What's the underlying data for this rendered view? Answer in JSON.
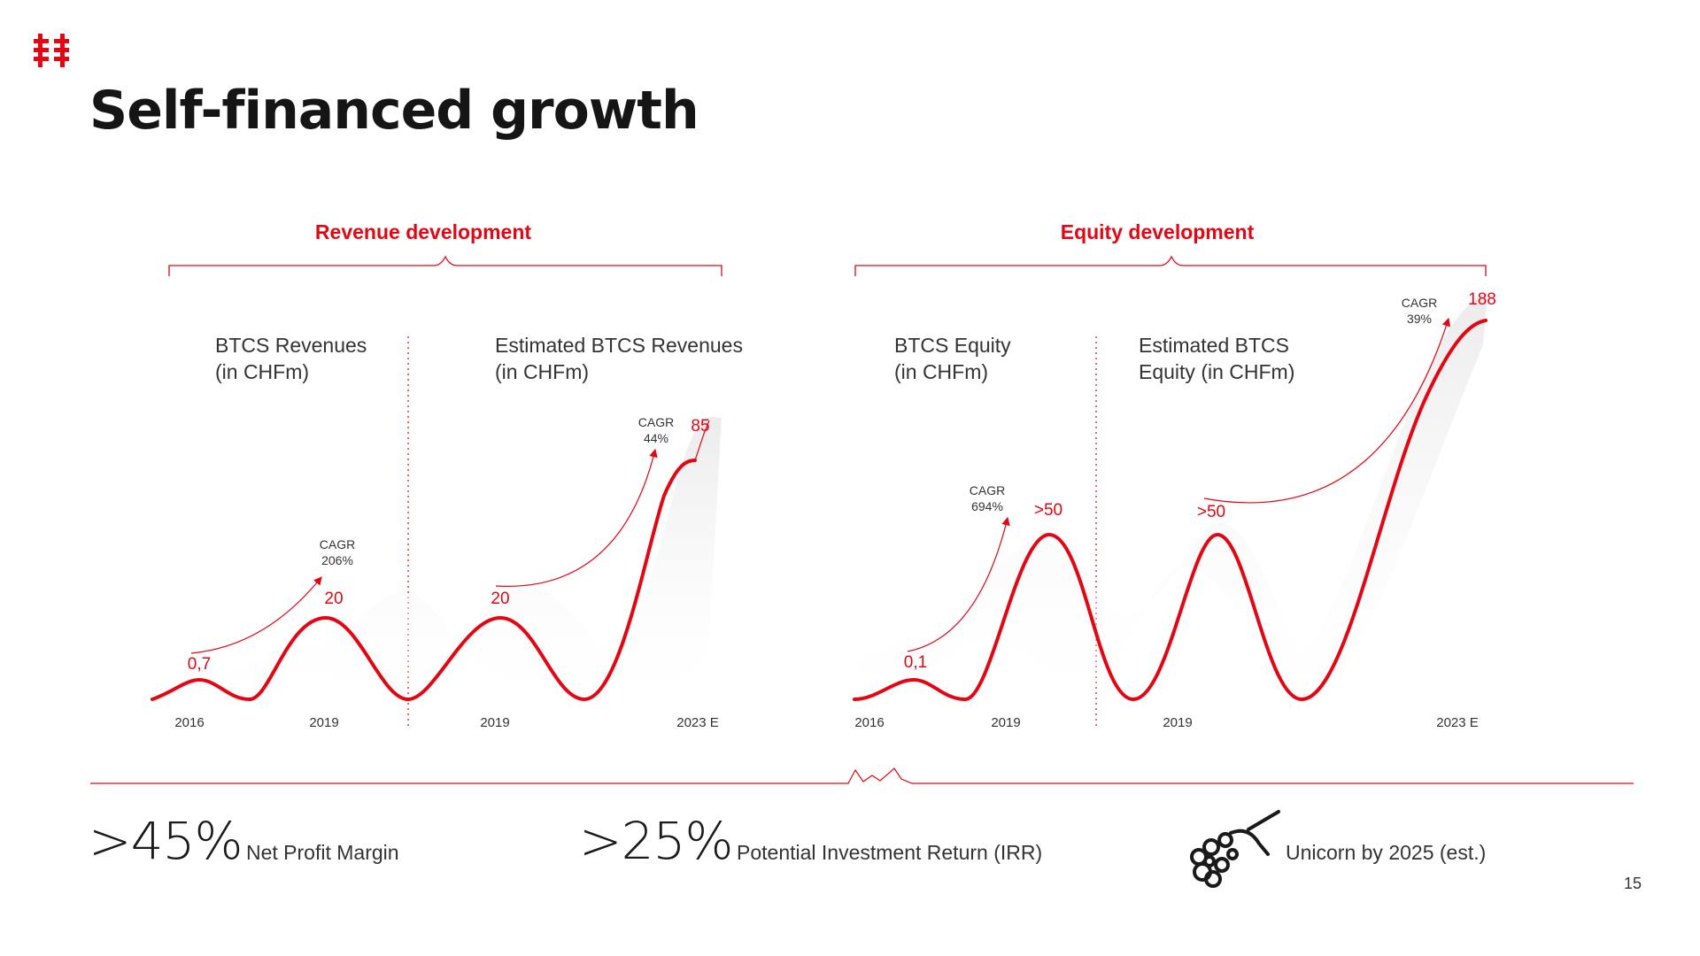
{
  "slide": {
    "title": "Self-financed growth",
    "page_number": "15",
    "accent_color": "#e30613",
    "logo_icon": "btcs-logo-icon"
  },
  "sections": {
    "revenue_title": "Revenue development",
    "equity_title": "Equity development"
  },
  "chart_data": [
    {
      "type": "line",
      "panel_label": [
        "BTCS Revenues",
        "(in CHFm)"
      ],
      "x": [
        "2016",
        "2019"
      ],
      "values": [
        0.7,
        20
      ],
      "value_labels": [
        "0,7",
        "20"
      ],
      "cagr": [
        "CAGR",
        "206%"
      ]
    },
    {
      "type": "line",
      "panel_label": [
        "Estimated BTCS Revenues",
        "(in CHFm)"
      ],
      "x": [
        "2019",
        "2023 E"
      ],
      "values": [
        20,
        85
      ],
      "value_labels": [
        "20",
        "85"
      ],
      "cagr": [
        "CAGR",
        "44%"
      ]
    },
    {
      "type": "line",
      "panel_label": [
        "BTCS Equity",
        "(in CHFm)"
      ],
      "x": [
        "2016",
        "2019"
      ],
      "values": [
        0.1,
        50
      ],
      "value_labels": [
        "0,1",
        ">50"
      ],
      "cagr": [
        "CAGR",
        "694%"
      ]
    },
    {
      "type": "line",
      "panel_label": [
        "Estimated BTCS",
        "Equity (in CHFm)"
      ],
      "x": [
        "2019",
        "2023 E"
      ],
      "values": [
        50,
        188
      ],
      "value_labels": [
        ">50",
        "188"
      ],
      "cagr": [
        "CAGR",
        "39%"
      ]
    }
  ],
  "kpis": [
    {
      "value": ">45%",
      "label": "Net Profit Margin"
    },
    {
      "value": ">25%",
      "label": "Potential Investment Return (IRR)"
    },
    {
      "icon": "unicorn-icon",
      "label": "Unicorn by 2025 (est.)"
    }
  ]
}
